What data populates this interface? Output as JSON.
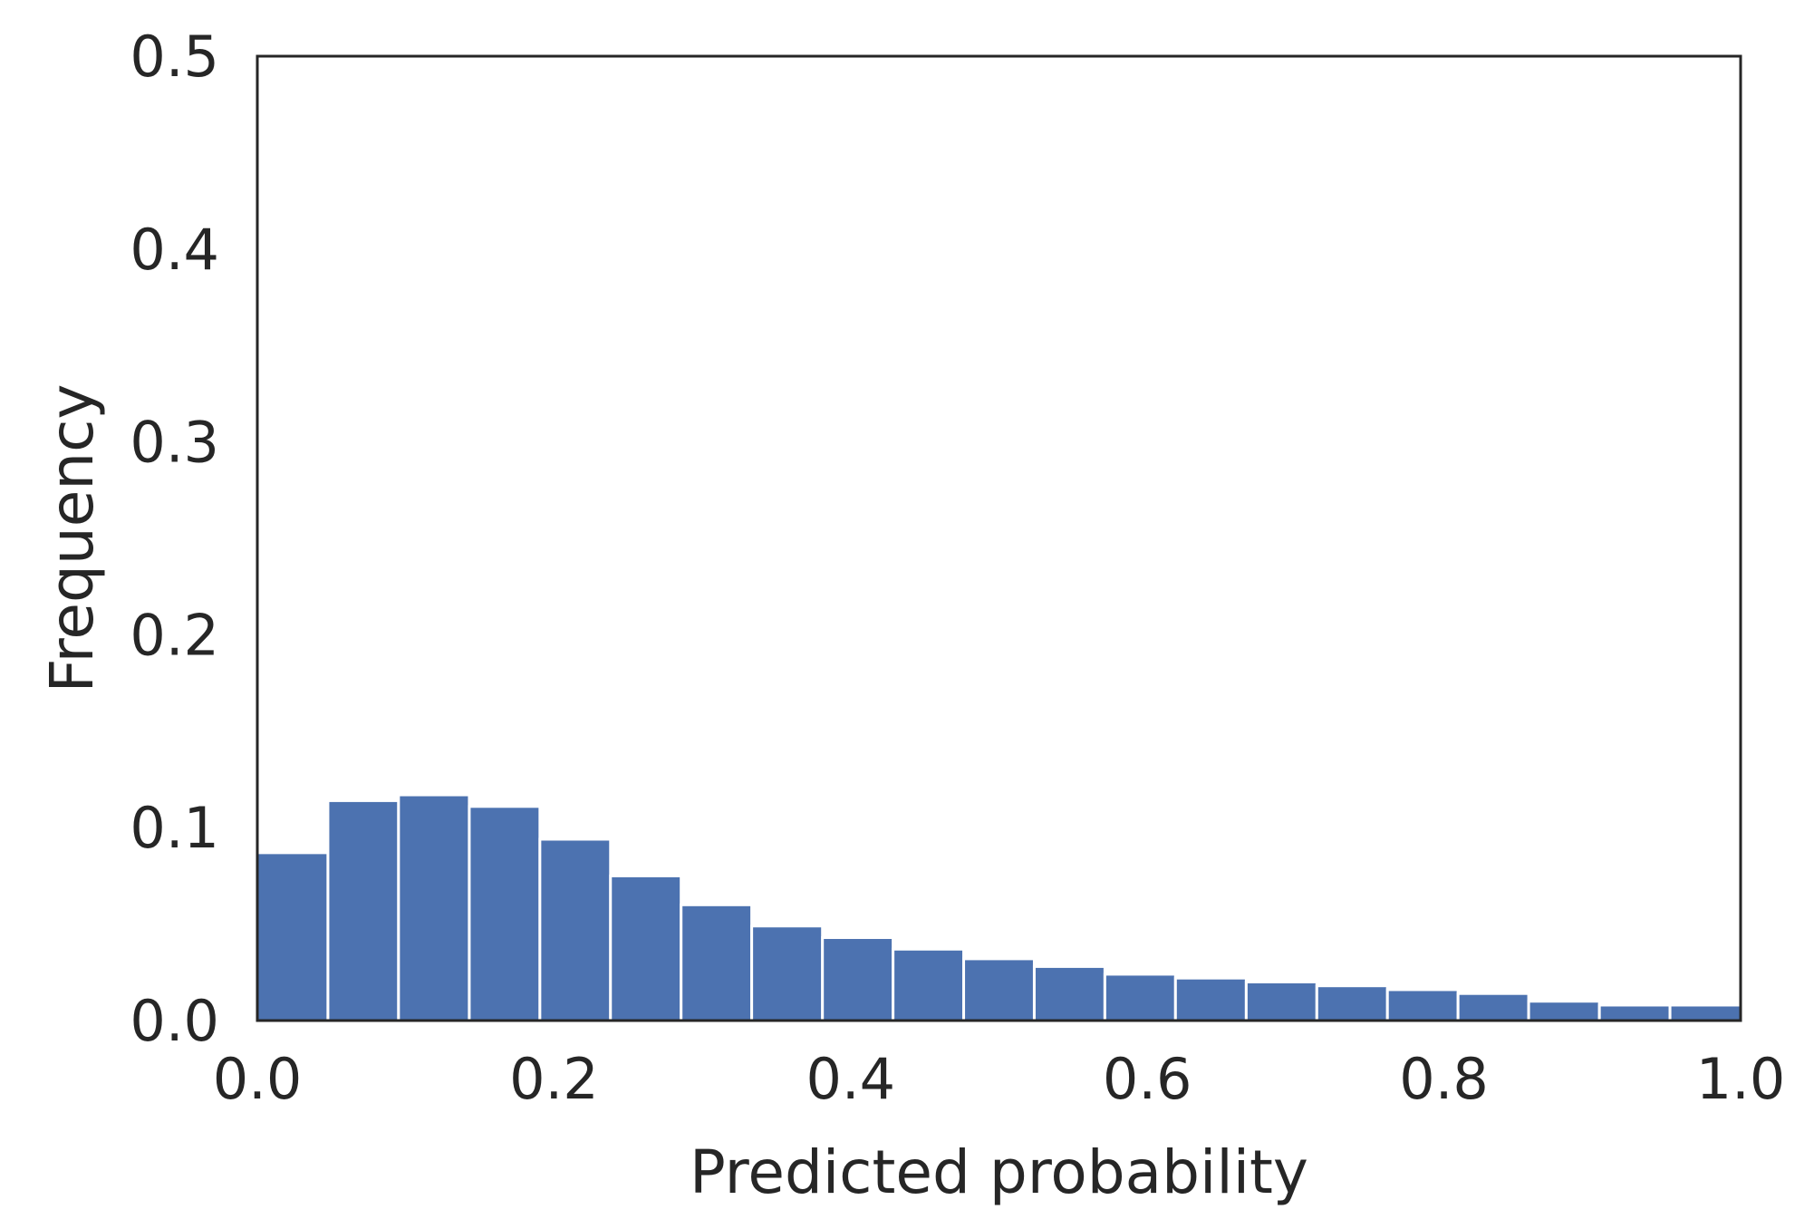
{
  "chart_data": {
    "type": "bar",
    "title": "",
    "xlabel": "Predicted probability",
    "ylabel": "Frequency",
    "xlim": [
      0.0,
      1.0
    ],
    "ylim": [
      0.0,
      0.5
    ],
    "xticks": [
      "0.0",
      "0.2",
      "0.4",
      "0.6",
      "0.8",
      "1.0"
    ],
    "yticks": [
      "0.0",
      "0.1",
      "0.2",
      "0.3",
      "0.4",
      "0.5"
    ],
    "grid": false,
    "bar_color": "#4c72b0",
    "bins": [
      {
        "x0": 0.0,
        "x1": 0.0476,
        "value": 0.087
      },
      {
        "x0": 0.0476,
        "x1": 0.0952,
        "value": 0.114
      },
      {
        "x0": 0.0952,
        "x1": 0.1429,
        "value": 0.117
      },
      {
        "x0": 0.1429,
        "x1": 0.1905,
        "value": 0.111
      },
      {
        "x0": 0.1905,
        "x1": 0.2381,
        "value": 0.094
      },
      {
        "x0": 0.2381,
        "x1": 0.2857,
        "value": 0.075
      },
      {
        "x0": 0.2857,
        "x1": 0.3333,
        "value": 0.06
      },
      {
        "x0": 0.3333,
        "x1": 0.381,
        "value": 0.049
      },
      {
        "x0": 0.381,
        "x1": 0.4286,
        "value": 0.043
      },
      {
        "x0": 0.4286,
        "x1": 0.4762,
        "value": 0.037
      },
      {
        "x0": 0.4762,
        "x1": 0.5238,
        "value": 0.032
      },
      {
        "x0": 0.5238,
        "x1": 0.5714,
        "value": 0.028
      },
      {
        "x0": 0.5714,
        "x1": 0.619,
        "value": 0.024
      },
      {
        "x0": 0.619,
        "x1": 0.6667,
        "value": 0.022
      },
      {
        "x0": 0.6667,
        "x1": 0.7143,
        "value": 0.02
      },
      {
        "x0": 0.7143,
        "x1": 0.7619,
        "value": 0.018
      },
      {
        "x0": 0.7619,
        "x1": 0.8095,
        "value": 0.016
      },
      {
        "x0": 0.8095,
        "x1": 0.8571,
        "value": 0.014
      },
      {
        "x0": 0.8571,
        "x1": 0.9048,
        "value": 0.01
      },
      {
        "x0": 0.9048,
        "x1": 0.9524,
        "value": 0.008
      },
      {
        "x0": 0.9524,
        "x1": 1.0,
        "value": 0.008
      }
    ]
  }
}
